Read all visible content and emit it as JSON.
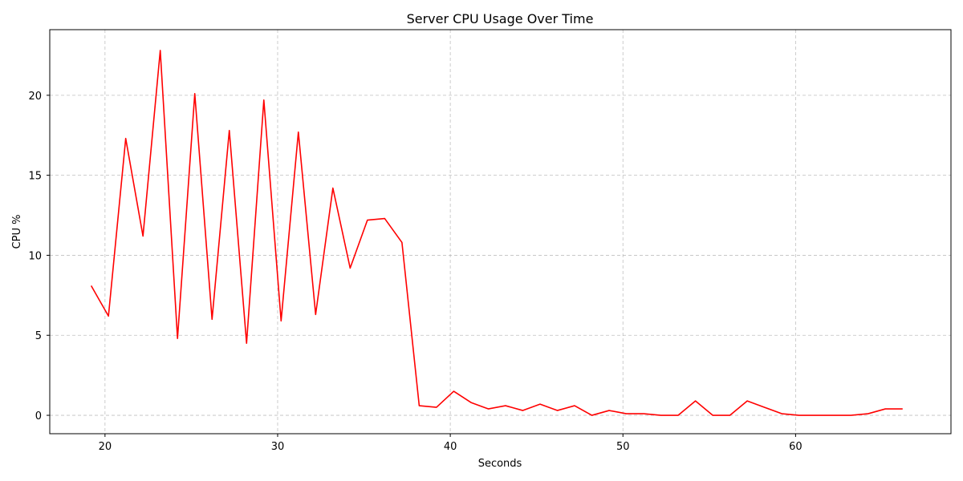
{
  "chart_data": {
    "type": "line",
    "title": "Server CPU Usage Over Time",
    "xlabel": "Seconds",
    "ylabel": "CPU %",
    "xlim": [
      16.8,
      69.0
    ],
    "ylim": [
      -1.15,
      24.1
    ],
    "xticks": [
      20,
      30,
      40,
      50,
      60
    ],
    "yticks": [
      0,
      5,
      10,
      15,
      20
    ],
    "grid": true,
    "line_color": "#ff0000",
    "series": [
      {
        "x": [
          19.2,
          20.2,
          21.2,
          22.2,
          23.2,
          24.2,
          25.2,
          26.2,
          27.2,
          28.2,
          29.2,
          30.2,
          31.2,
          32.2,
          33.2,
          34.2,
          35.2,
          36.2,
          37.2,
          38.2,
          39.2,
          40.2,
          41.2,
          42.2,
          43.2,
          44.2,
          45.2,
          46.2,
          47.2,
          48.2,
          49.2,
          50.2,
          51.2,
          52.2,
          53.2,
          54.2,
          55.2,
          56.2,
          57.2,
          58.2,
          59.2,
          60.2,
          61.2,
          62.2,
          63.2,
          64.2,
          65.2,
          66.2
        ],
        "values": [
          8.1,
          6.2,
          17.3,
          11.2,
          22.8,
          4.8,
          20.1,
          6.0,
          17.8,
          4.5,
          19.7,
          5.9,
          17.7,
          6.3,
          14.2,
          9.2,
          12.2,
          12.3,
          10.8,
          0.6,
          0.5,
          1.5,
          0.8,
          0.4,
          0.6,
          0.3,
          0.7,
          0.3,
          0.6,
          0.0,
          0.3,
          0.1,
          0.1,
          0.0,
          0.0,
          0.9,
          0.0,
          0.0,
          0.9,
          0.5,
          0.1,
          0.0,
          0.0,
          0.0,
          0.0,
          0.1,
          0.4,
          0.4
        ]
      }
    ]
  }
}
